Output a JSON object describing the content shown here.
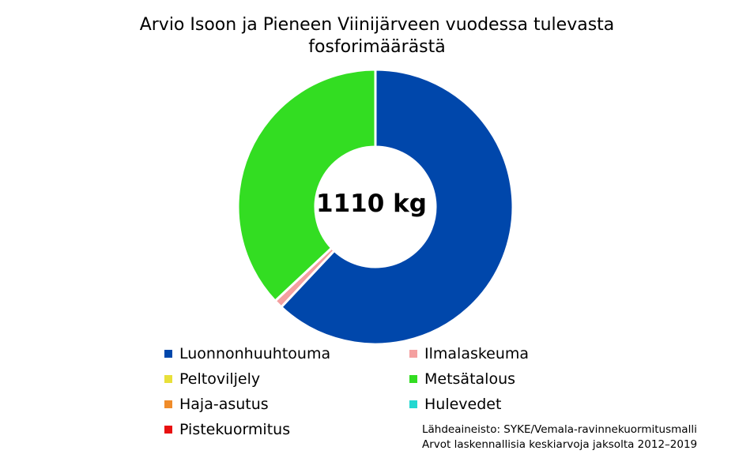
{
  "chart_data": {
    "type": "pie",
    "title_lines": [
      "Arvio Isoon ja Pieneen Viinijärveen vuodessa tulevasta",
      "fosforimäärästä"
    ],
    "center_label": "1110 kg",
    "slices": [
      {
        "name": "Luonnonhuuhtouma",
        "value": 62,
        "color": "#0047ab"
      },
      {
        "name": "Ilmalaskeuma",
        "value": 1,
        "color": "#f4a0a0"
      },
      {
        "name": "Peltoviljely",
        "value": 0,
        "color": "#e8e03a"
      },
      {
        "name": "Metsätalous",
        "value": 37,
        "color": "#33dd22"
      },
      {
        "name": "Haja-asutus",
        "value": 0,
        "color": "#f08c2a"
      },
      {
        "name": "Hulevedet",
        "value": 0,
        "color": "#22d8d0"
      },
      {
        "name": "Pistekuormitus",
        "value": 0,
        "color": "#e81010"
      }
    ],
    "legend_placement": "bottom",
    "source_lines": [
      "Lähdeaineisto: SYKE/Vemala-ravinnekuormitusmalli",
      "Arvot laskennallisia keskiarvoja jaksolta 2012–2019"
    ]
  }
}
